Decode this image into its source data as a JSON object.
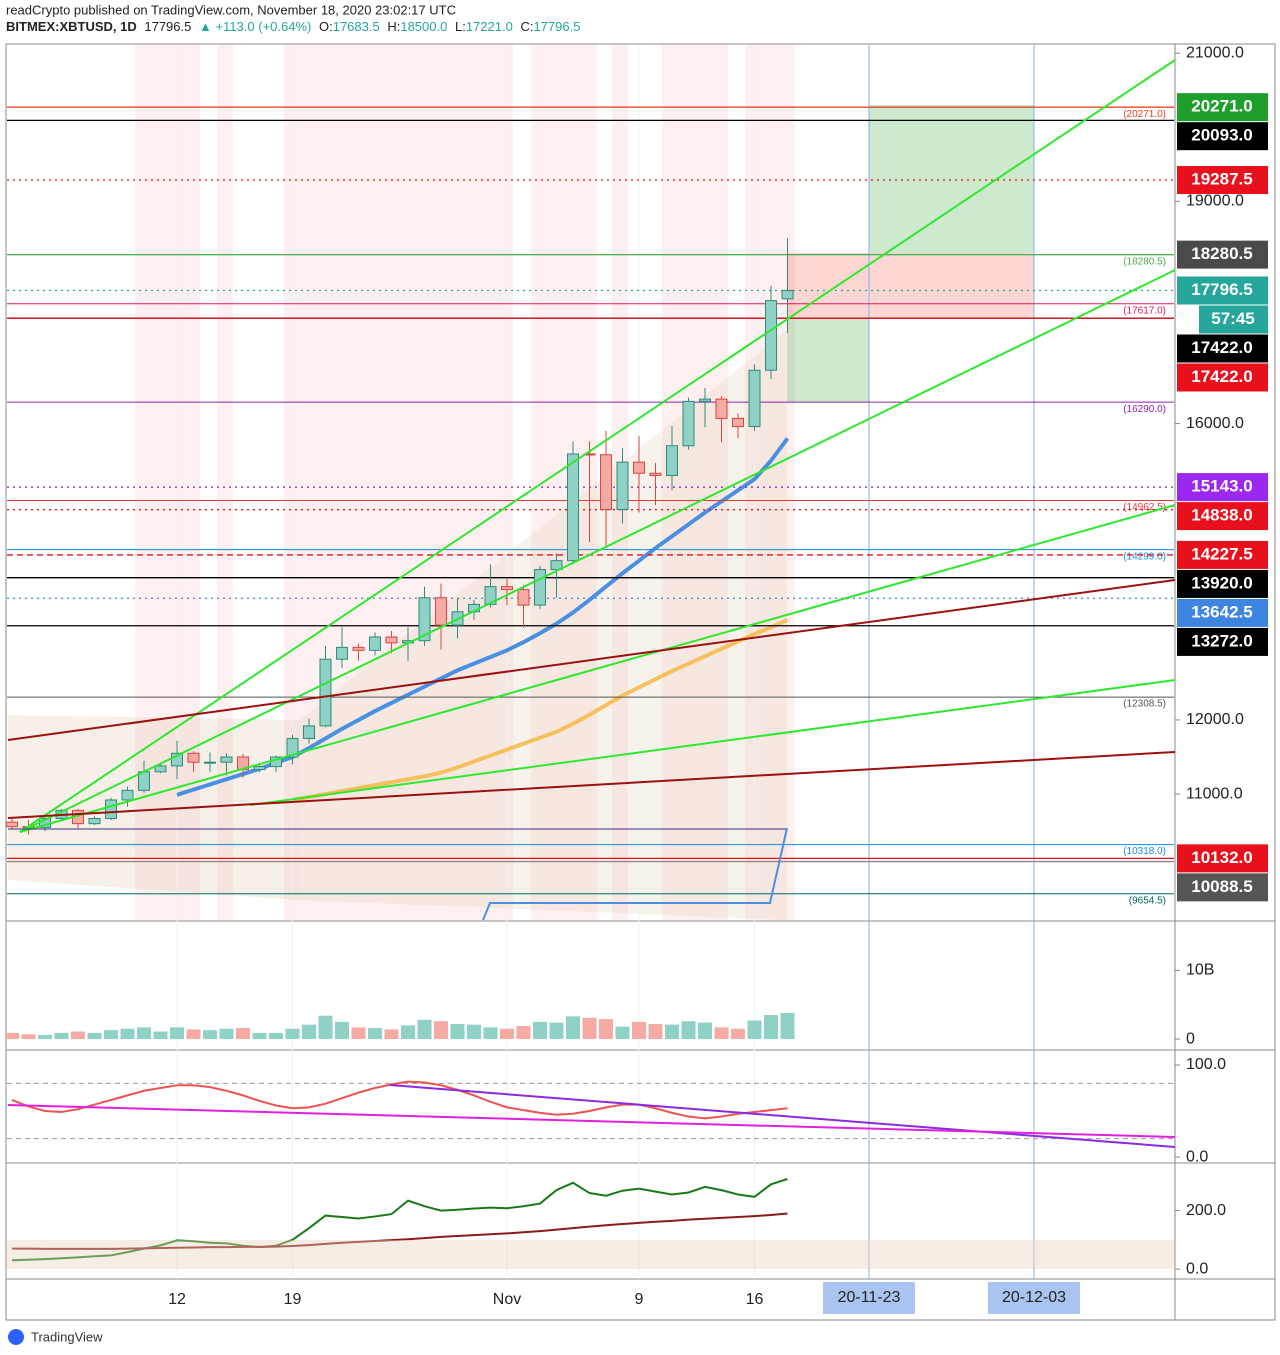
{
  "header": {
    "publisher": "readCrypto published on TradingView.com, November 18, 2020 23:02:17 UTC",
    "symbol": "BITMEX:XBTUSD, 1D",
    "last": "17796.5",
    "change": "▲ +113.0 (+0.64%)",
    "ohlc": [
      {
        "key": "O:",
        "val": "17683.5"
      },
      {
        "key": "H:",
        "val": "18500.0"
      },
      {
        "key": "L:",
        "val": "17221.0"
      },
      {
        "key": "C:",
        "val": "17796.5"
      }
    ]
  },
  "countdown": "57:45",
  "footer": "TradingView",
  "chart_data": [
    {
      "type": "candlestick",
      "categories": [
        null,
        null,
        null,
        null,
        null,
        null,
        null,
        null,
        null,
        null,
        "12",
        null,
        null,
        null,
        null,
        null,
        null,
        "19",
        null,
        null,
        null,
        null,
        null,
        null,
        null,
        null,
        null,
        null,
        null,
        null,
        "Nov",
        null,
        null,
        null,
        null,
        null,
        null,
        null,
        "9",
        null,
        null,
        null,
        null,
        null,
        null,
        "16",
        null,
        null
      ],
      "open": [
        10620,
        10560,
        10550,
        10670,
        10780,
        10600,
        10670,
        10920,
        11050,
        11300,
        11380,
        11550,
        11430,
        11430,
        11500,
        11330,
        11370,
        11500,
        11750,
        11920,
        12820,
        12980,
        12940,
        13120,
        13040,
        13070,
        13650,
        13280,
        13460,
        13560,
        13800,
        13760,
        13550,
        14030,
        14150,
        15590,
        15580,
        14840,
        15480,
        15330,
        15300,
        15700,
        16300,
        16330,
        16070,
        15960,
        16720,
        17683.5
      ],
      "high": [
        10680,
        10650,
        10700,
        10800,
        10800,
        10700,
        10950,
        11100,
        11450,
        11420,
        11720,
        11580,
        11560,
        11550,
        11540,
        11420,
        11520,
        11800,
        12020,
        13000,
        13250,
        13030,
        13180,
        13200,
        13250,
        13800,
        13840,
        13650,
        13620,
        14100,
        13900,
        13820,
        14080,
        14250,
        15760,
        15760,
        15900,
        15670,
        15830,
        15470,
        15970,
        16350,
        16480,
        16370,
        16140,
        16800,
        17860,
        18500
      ],
      "low": [
        10520,
        10450,
        10500,
        10640,
        10540,
        10580,
        10650,
        10830,
        11020,
        11280,
        11200,
        11300,
        11300,
        11250,
        11220,
        11300,
        11300,
        11400,
        11680,
        11900,
        12700,
        12800,
        12870,
        12900,
        12800,
        13000,
        12950,
        13100,
        13350,
        13520,
        13550,
        13250,
        13500,
        13650,
        14100,
        14400,
        14350,
        14650,
        14800,
        14900,
        15100,
        15650,
        15950,
        15750,
        15800,
        15900,
        16600,
        17221
      ],
      "close": [
        10560,
        10550,
        10670,
        10780,
        10600,
        10670,
        10920,
        11050,
        11300,
        11380,
        11550,
        11430,
        11430,
        11500,
        11330,
        11370,
        11500,
        11750,
        11920,
        12820,
        12980,
        12940,
        13120,
        13040,
        13070,
        13650,
        13280,
        13460,
        13560,
        13800,
        13760,
        13550,
        14030,
        14150,
        15590,
        15580,
        14840,
        15480,
        15330,
        15300,
        15700,
        16300,
        16330,
        16070,
        15960,
        16720,
        17660,
        17796.5
      ],
      "up_color": "#8fd1c4",
      "up_edge": "#2e8b7a",
      "down_color": "#f5aaa3",
      "down_edge": "#d9463e",
      "ylim": [
        9300,
        21110
      ],
      "yticks": [
        {
          "value": 21000,
          "label": "21000.0"
        },
        {
          "value": 19000,
          "label": "19000.0"
        },
        {
          "value": 16000,
          "label": "16000.0"
        },
        {
          "value": 12000,
          "label": "12000.0"
        },
        {
          "value": 11000,
          "label": "11000.0"
        }
      ],
      "overlays": [
        {
          "color": "#4a90e2",
          "values": [
            null,
            null,
            null,
            null,
            null,
            null,
            null,
            null,
            null,
            null,
            10990,
            11060,
            11130,
            11200,
            11270,
            11340,
            11420,
            11500,
            11620,
            11750,
            11880,
            12000,
            12120,
            12230,
            12340,
            12450,
            12560,
            12670,
            12760,
            12850,
            12940,
            13050,
            13170,
            13300,
            13450,
            13620,
            13800,
            13980,
            14150,
            14320,
            14480,
            14640,
            14800,
            14950,
            15100,
            15250,
            15500,
            15800
          ]
        },
        {
          "color": "#f6c05c",
          "values": [
            null,
            null,
            null,
            null,
            null,
            null,
            null,
            null,
            null,
            null,
            null,
            null,
            null,
            null,
            null,
            null,
            null,
            10920,
            10960,
            11000,
            11040,
            11080,
            11120,
            11160,
            11200,
            11240,
            11290,
            11360,
            11440,
            11520,
            11600,
            11680,
            11760,
            11840,
            11950,
            12070,
            12200,
            12330,
            12440,
            12550,
            12660,
            12760,
            12860,
            12960,
            13060,
            13160,
            13250,
            13350
          ]
        }
      ],
      "price_lines": [
        {
          "value": 20271,
          "label": "20271.0",
          "color": "#1e9e2a",
          "line_color": "#e8401c",
          "style": "solid"
        },
        {
          "value": 20093,
          "label": "20093.0",
          "color": "#000000",
          "line_color": "#000000",
          "style": "solid"
        },
        {
          "value": 19287.5,
          "label": "19287.5",
          "color": "#e8101c",
          "line_color": "#e8101c",
          "style": "dotted"
        },
        {
          "value": 18280.5,
          "label": "18280.5",
          "color": "#4a4a4a",
          "line_color": "#4caf50",
          "style": "solid"
        },
        {
          "value": 17796.5,
          "label": "17796.5",
          "color": "#26a69a",
          "line_color": "#26a69a",
          "style": "dotted"
        },
        {
          "value": 17422,
          "label": "17422.0",
          "color": "#000000",
          "line_color": "#000000",
          "style": "solid"
        },
        {
          "value": 17422,
          "label": "17422.0",
          "color": "#e8101c",
          "line_color": "#e8101c",
          "style": "solid"
        },
        {
          "value": 15143,
          "label": "15143.0",
          "color": "#9c27f0",
          "line_color": "#7b1fd2",
          "style": "dotted"
        },
        {
          "value": 14838,
          "label": "14838.0",
          "color": "#e8101c",
          "line_color": "#e8101c",
          "style": "dotted"
        },
        {
          "value": 14227.5,
          "label": "14227.5",
          "color": "#e8101c",
          "line_color": "#e8101c",
          "style": "dashed"
        },
        {
          "value": 13920,
          "label": "13920.0",
          "color": "#000000",
          "line_color": "#000000",
          "style": "solid"
        },
        {
          "value": 13642.5,
          "label": "13642.5",
          "color": "#3d85e0",
          "line_color": "#3d85e0",
          "style": "dotted"
        },
        {
          "value": 13272,
          "label": "13272.0",
          "color": "#000000",
          "line_color": "#000000",
          "style": "solid"
        },
        {
          "value": 10132,
          "label": "10132.0",
          "color": "#e8101c",
          "line_color": "#e8101c",
          "style": "solid"
        },
        {
          "value": 10088.5,
          "label": "10088.5",
          "color": "#555555",
          "line_color": "#888888",
          "style": "solid"
        }
      ],
      "levels": [
        {
          "value": 20271,
          "label": "(20271.0)",
          "color": "#e8401c"
        },
        {
          "value": 18280.5,
          "label": "(18280.5)",
          "color": "#4caf50"
        },
        {
          "value": 17617,
          "label": "(17617.0)",
          "color": "#d81b60"
        },
        {
          "value": 16290,
          "label": "(16290.0)",
          "color": "#8e24aa"
        },
        {
          "value": 14962.5,
          "label": "(14962.5)",
          "color": "#e53935"
        },
        {
          "value": 14299,
          "label": "(14299.0)",
          "color": "#1e88e5"
        },
        {
          "value": 12308.5,
          "label": "(12308.5)",
          "color": "#555555"
        },
        {
          "value": 10318,
          "label": "(10318.0)",
          "color": "#1e88e5"
        },
        {
          "value": 9654.5,
          "label": "(9654.5)",
          "color": "#00695c"
        }
      ],
      "x_markers": [
        "20-11-23",
        "20-12-03"
      ]
    },
    {
      "type": "bar",
      "values": [
        900000000,
        700000000,
        600000000,
        900000000,
        1100000000,
        900000000,
        1300000000,
        1500000000,
        1700000000,
        1100000000,
        1700000000,
        1400000000,
        1300000000,
        1500000000,
        1600000000,
        900000000,
        900000000,
        1500000000,
        2100000000,
        3400000000,
        2500000000,
        1700000000,
        1600000000,
        1400000000,
        2000000000,
        2800000000,
        2600000000,
        2200000000,
        2100000000,
        1700000000,
        1500000000,
        1900000000,
        2500000000,
        2400000000,
        3300000000,
        3100000000,
        2900000000,
        1800000000,
        2500000000,
        2200000000,
        2100000000,
        2600000000,
        2400000000,
        1700000000,
        1500000000,
        2700000000,
        3500000000,
        3800000000
      ],
      "ylim": [
        -1300000000,
        16600000000
      ],
      "yticks": [
        {
          "value": 10000000000,
          "label": "10B"
        },
        0
      ]
    },
    {
      "type": "line",
      "series": [
        {
          "color": "#ef5350",
          "values": [
            62,
            55,
            50,
            49,
            52,
            57,
            62,
            67,
            72,
            75,
            78,
            78,
            76,
            72,
            67,
            61,
            56,
            53,
            54,
            58,
            64,
            70,
            75,
            79,
            82,
            81,
            78,
            73,
            67,
            60,
            54,
            51,
            48,
            46,
            47,
            50,
            54,
            57,
            57,
            53,
            48,
            44,
            42,
            44,
            47,
            49,
            51,
            53
          ]
        }
      ],
      "ylim": [
        -5.4,
        110.9
      ],
      "yticks": [
        {
          "value": 100,
          "label": "100.0"
        },
        {
          "value": 0,
          "label": "0.0"
        }
      ],
      "levels": [
        80,
        20
      ]
    },
    {
      "type": "line",
      "series": [
        {
          "color": "#1a7a1a",
          "values": [
            30,
            32,
            34,
            37,
            40,
            44,
            47,
            58,
            70,
            81,
            98,
            95,
            90,
            88,
            80,
            75,
            80,
            100,
            140,
            183,
            178,
            173,
            180,
            188,
            234,
            215,
            200,
            203,
            207,
            210,
            208,
            215,
            224,
            270,
            295,
            260,
            251,
            268,
            275,
            265,
            255,
            262,
            281,
            270,
            255,
            247,
            290,
            308
          ]
        },
        {
          "color": "#8b1a1a",
          "values": [
            70,
            70,
            69,
            69,
            69,
            69,
            69,
            70,
            71,
            72,
            73,
            74,
            75,
            75,
            76,
            76,
            77,
            79,
            82,
            86,
            90,
            93,
            96,
            99,
            102,
            106,
            110,
            113,
            116,
            119,
            122,
            126,
            130,
            135,
            140,
            145,
            150,
            154,
            158,
            162,
            165,
            169,
            172,
            175,
            178,
            181,
            185,
            190
          ]
        }
      ],
      "ylim": [
        -30.5,
        352.5
      ],
      "yticks": [
        {
          "value": 200,
          "label": "200.0"
        },
        {
          "value": 0,
          "label": "0.0"
        }
      ]
    }
  ]
}
